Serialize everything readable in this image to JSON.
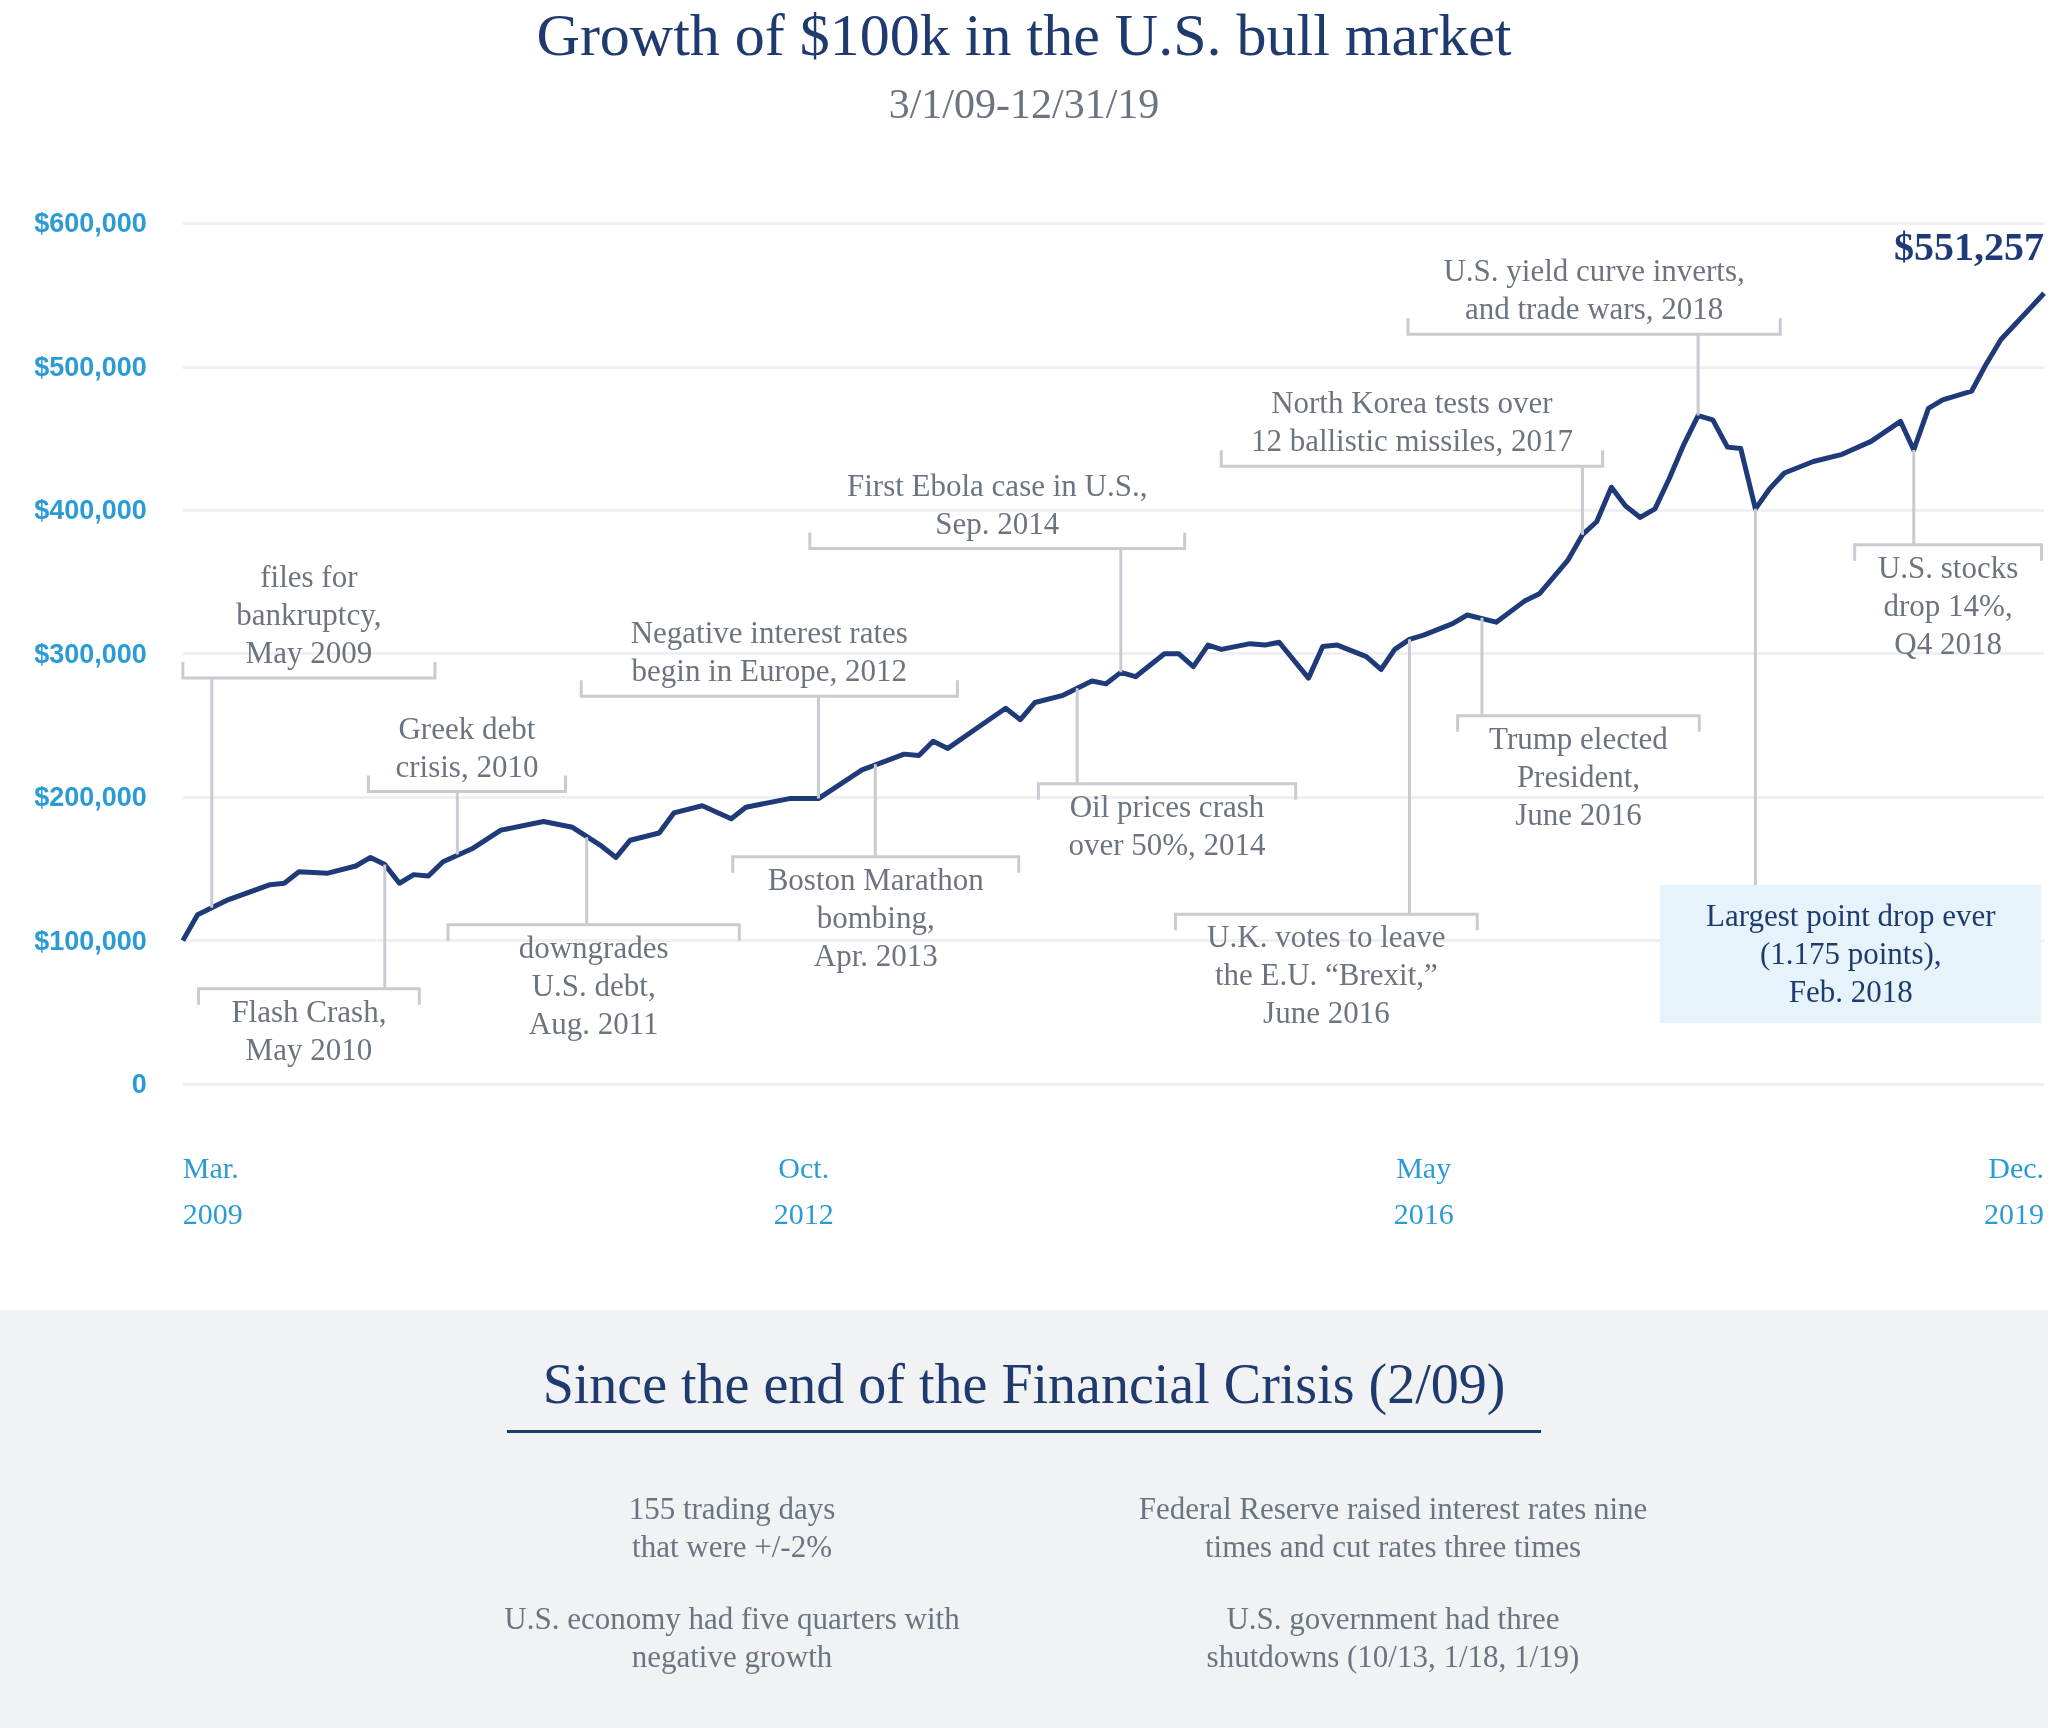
{
  "chart_data": {
    "type": "line",
    "title": "Growth of $100k in the U.S. bull market",
    "subtitle": "3/1/09-12/31/19",
    "x": [
      "2009-03",
      "2009-04",
      "2009-06",
      "2009-09",
      "2009-10",
      "2009-11",
      "2010-01",
      "2010-03",
      "2010-04",
      "2010-05",
      "2010-06",
      "2010-07",
      "2010-08",
      "2010-09",
      "2010-11",
      "2011-01",
      "2011-04",
      "2011-06",
      "2011-08",
      "2011-09",
      "2011-10",
      "2011-12",
      "2012-01",
      "2012-03",
      "2012-05",
      "2012-06",
      "2012-09",
      "2012-11",
      "2013-02",
      "2013-05",
      "2013-06",
      "2013-07",
      "2013-08",
      "2013-10",
      "2013-12",
      "2014-01",
      "2014-02",
      "2014-04",
      "2014-06",
      "2014-07",
      "2014-08",
      "2014-09",
      "2014-11",
      "2014-12",
      "2015-01",
      "2015-02",
      "2015-03",
      "2015-05",
      "2015-06",
      "2015-07",
      "2015-09",
      "2015-10",
      "2015-11",
      "2016-01",
      "2016-02",
      "2016-03",
      "2016-04",
      "2016-05",
      "2016-07",
      "2016-08",
      "2016-10",
      "2016-12",
      "2017-01",
      "2017-03",
      "2017-04",
      "2017-05",
      "2017-06",
      "2017-07",
      "2017-08",
      "2017-09",
      "2017-10",
      "2017-11",
      "2017-12",
      "2018-01",
      "2018-02",
      "2018-03",
      "2018-04",
      "2018-05",
      "2018-06",
      "2018-08",
      "2018-10",
      "2018-12",
      "2019-01",
      "2019-02",
      "2019-03",
      "2019-04",
      "2019-05",
      "2019-07",
      "2019-08",
      "2019-09",
      "2019-12"
    ],
    "series": [
      {
        "color": "#1f3a78",
        "values": [
          100000,
          118000,
          128000,
          139000,
          140000,
          148000,
          147000,
          152000,
          158000,
          153000,
          140000,
          146000,
          145000,
          155000,
          164000,
          177000,
          183000,
          179000,
          166000,
          158000,
          170000,
          175000,
          189000,
          194000,
          185000,
          193000,
          199000,
          199000,
          219000,
          230000,
          229000,
          239000,
          234000,
          248000,
          262000,
          254000,
          266000,
          271000,
          281000,
          279000,
          287000,
          284000,
          300000,
          300000,
          291000,
          306000,
          303000,
          307000,
          306000,
          308000,
          283000,
          305000,
          306000,
          298000,
          289000,
          303000,
          310000,
          313000,
          321000,
          327000,
          322000,
          337000,
          342000,
          365000,
          383000,
          392000,
          416000,
          403000,
          395000,
          401000,
          422000,
          446000,
          466000,
          463000,
          444000,
          443000,
          401000,
          415000,
          426000,
          434000,
          439000,
          448000,
          455000,
          462000,
          442000,
          471000,
          477000,
          483000,
          502000,
          519000,
          551257
        ],
        "value_labels": [
          null,
          null,
          null,
          null,
          null,
          null,
          null,
          null,
          null,
          null,
          null,
          null,
          null,
          null,
          null,
          null,
          null,
          null,
          null,
          null,
          null,
          null,
          null,
          null,
          null,
          null,
          null,
          null,
          null,
          null,
          null,
          null,
          null,
          null,
          null,
          null,
          null,
          null,
          null,
          null,
          null,
          null,
          null,
          null,
          null,
          null,
          null,
          null,
          null,
          null,
          null,
          null,
          null,
          null,
          null,
          null,
          null,
          null,
          null,
          null,
          null,
          null,
          null,
          null,
          null,
          null,
          null,
          null,
          null,
          null,
          null,
          null,
          null,
          null,
          null,
          null,
          null,
          null,
          null,
          null,
          null,
          null,
          null,
          null,
          null,
          null,
          null,
          null,
          null,
          null,
          "$551,257"
        ]
      }
    ],
    "xlim": [
      "2009-03",
      "2019-12"
    ],
    "xticks": [
      {
        "value": "2009-03",
        "label": "Mar.\n2009"
      },
      {
        "value": "2012-10",
        "label": "Oct.\n2012"
      },
      {
        "value": "2016-05",
        "label": "May\n2016"
      },
      {
        "value": "2019-12",
        "label": "Dec.\n2019"
      }
    ],
    "ylim": [
      0,
      600000
    ],
    "yticks": [
      {
        "value": 0,
        "label": "0"
      },
      {
        "value": 100000,
        "label": "$100,000"
      },
      {
        "value": 200000,
        "label": "$200,000"
      },
      {
        "value": 300000,
        "label": "$300,000"
      },
      {
        "value": 400000,
        "label": "$400,000"
      },
      {
        "value": 500000,
        "label": "$500,000"
      },
      {
        "value": 600000,
        "label": "$600,000"
      }
    ],
    "grid": "y",
    "annotations": [
      {
        "text": "files for\nbankruptcy,\nMay 2009",
        "x": "2009-05",
        "y": 123000
      },
      {
        "text": "Flash Crash,\nMay 2010",
        "x": "2010-05",
        "y": 153000
      },
      {
        "text": "Greek debt\ncrisis, 2010",
        "x": "2010-10",
        "y": 160000
      },
      {
        "text": "downgrades\nU.S. debt,\nAug. 2011",
        "x": "2011-07",
        "y": 172000
      },
      {
        "text": "Negative interest rates\nbegin in Europe, 2012",
        "x": "2012-11",
        "y": 199000
      },
      {
        "text": "Boston Marathon\nbombing,\nApr. 2013",
        "x": "2013-03",
        "y": 223000
      },
      {
        "text": "First Ebola case in U.S.,\nSep. 2014",
        "x": "2014-08",
        "y": 287000
      },
      {
        "text": "Oil prices crash\nover 50%, 2014",
        "x": "2014-05",
        "y": 276000
      },
      {
        "text": "U.K. votes to leave\nthe E.U. “Brexit,”\nJune 2016",
        "x": "2016-04",
        "y": 310000
      },
      {
        "text": "Trump elected\nPresident,\nJune 2016",
        "x": "2016-09",
        "y": 325000
      },
      {
        "text": "North Korea tests over\n12 ballistic missiles, 2017",
        "x": "2017-04",
        "y": 383000
      },
      {
        "text": "U.S. yield curve inverts,\nand trade wars, 2018",
        "x": "2017-12",
        "y": 466000
      },
      {
        "text": "Largest point drop ever\n(1.175 points),\nFeb. 2018",
        "x": "2018-04",
        "y": 401000
      },
      {
        "text": "U.S. stocks\ndrop 14%,\nQ4 2018",
        "x": "2019-03",
        "y": 442000
      },
      "Since the end of the Financial Crisis (2/09)",
      "155 trading days\nthat were +/-2%",
      "Federal Reserve raised interest rates nine\ntimes and cut rates three times",
      "U.S. economy had five quarters with\nnegative growth",
      "U.S. government had three\nshutdowns (10/13, 1/18, 1/19)"
    ]
  }
}
